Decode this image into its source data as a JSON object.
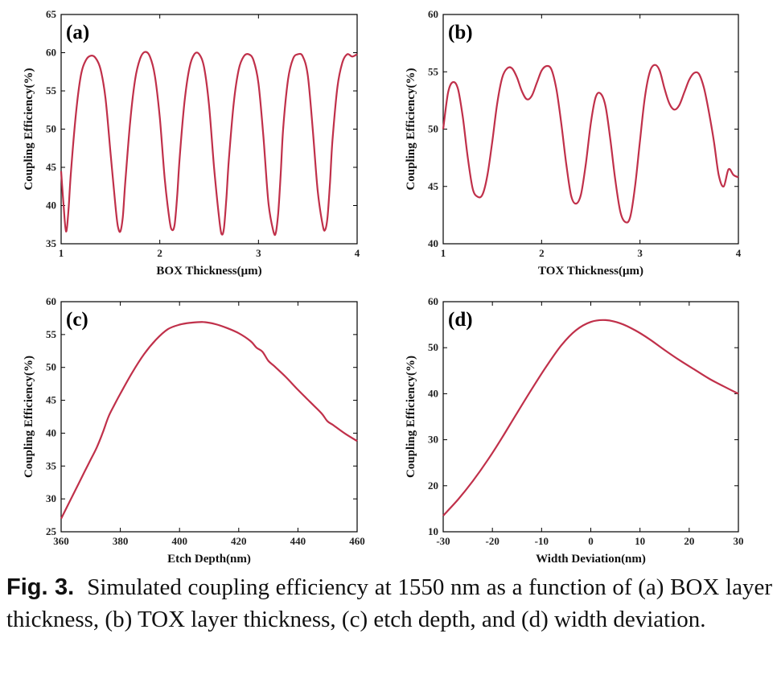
{
  "colors": {
    "line": "#c0304a",
    "axis": "#000000"
  },
  "caption": {
    "label": "Fig. 3.",
    "text": "Simulated coupling efficiency at 1550 nm as a function of (a) BOX layer thickness, (b) TOX layer thickness, (c) etch depth, and (d) width deviation."
  },
  "chart_data": [
    {
      "type": "line",
      "panel": "(a)",
      "xlabel": "BOX Thickness(μm)",
      "ylabel": "Coupling Efficiency(%)",
      "xlim": [
        1,
        4
      ],
      "ylim": [
        35,
        65
      ],
      "xticks": [
        1,
        2,
        3,
        4
      ],
      "yticks": [
        35,
        40,
        45,
        50,
        55,
        60,
        65
      ],
      "x": [
        1.0,
        1.025,
        1.05,
        1.075,
        1.1,
        1.15,
        1.2,
        1.25,
        1.3,
        1.35,
        1.4,
        1.45,
        1.5,
        1.55,
        1.575,
        1.6,
        1.625,
        1.65,
        1.7,
        1.75,
        1.8,
        1.85,
        1.9,
        1.95,
        2.0,
        2.05,
        2.1,
        2.125,
        2.15,
        2.175,
        2.2,
        2.25,
        2.3,
        2.35,
        2.4,
        2.45,
        2.5,
        2.55,
        2.6,
        2.625,
        2.65,
        2.675,
        2.7,
        2.75,
        2.8,
        2.85,
        2.9,
        2.95,
        3.0,
        3.05,
        3.1,
        3.15,
        3.175,
        3.2,
        3.225,
        3.25,
        3.3,
        3.35,
        3.4,
        3.45,
        3.5,
        3.55,
        3.6,
        3.65,
        3.675,
        3.7,
        3.725,
        3.75,
        3.8,
        3.85,
        3.9,
        3.95,
        4.0
      ],
      "y": [
        44.5,
        40.0,
        36.6,
        39.5,
        44.5,
        52.0,
        57.0,
        59.0,
        59.6,
        59.3,
        57.8,
        54.0,
        47.0,
        40.0,
        37.3,
        36.6,
        38.5,
        43.0,
        51.0,
        56.5,
        59.2,
        60.1,
        59.5,
        57.0,
        51.5,
        43.5,
        38.0,
        36.8,
        37.5,
        41.0,
        46.0,
        53.5,
        58.0,
        59.8,
        59.8,
        58.0,
        53.0,
        45.0,
        38.5,
        36.3,
        37.0,
        41.0,
        46.0,
        53.5,
        57.8,
        59.5,
        59.8,
        59.0,
        56.0,
        49.0,
        40.5,
        36.7,
        36.4,
        39.0,
        44.0,
        50.0,
        56.5,
        59.2,
        59.8,
        59.5,
        57.0,
        50.0,
        42.0,
        37.5,
        36.8,
        38.5,
        43.0,
        48.5,
        55.5,
        58.7,
        59.8,
        59.5,
        59.8
      ]
    },
    {
      "type": "line",
      "panel": "(b)",
      "xlabel": "TOX Thickness(μm)",
      "ylabel": "Coupling Efficiency(%)",
      "xlim": [
        1,
        4
      ],
      "ylim": [
        40,
        60
      ],
      "xticks": [
        1,
        2,
        3,
        4
      ],
      "yticks": [
        40,
        45,
        50,
        55,
        60
      ],
      "x": [
        1.0,
        1.05,
        1.1,
        1.15,
        1.2,
        1.25,
        1.3,
        1.35,
        1.4,
        1.45,
        1.5,
        1.55,
        1.6,
        1.65,
        1.7,
        1.75,
        1.8,
        1.85,
        1.9,
        1.95,
        2.0,
        2.05,
        2.1,
        2.15,
        2.2,
        2.25,
        2.3,
        2.35,
        2.4,
        2.45,
        2.5,
        2.55,
        2.6,
        2.65,
        2.7,
        2.75,
        2.8,
        2.85,
        2.9,
        2.95,
        3.0,
        3.05,
        3.1,
        3.15,
        3.2,
        3.25,
        3.3,
        3.35,
        3.4,
        3.45,
        3.5,
        3.55,
        3.6,
        3.65,
        3.7,
        3.75,
        3.8,
        3.85,
        3.9,
        3.95,
        4.0
      ],
      "y": [
        50.0,
        53.2,
        54.1,
        53.5,
        51.0,
        47.5,
        44.8,
        44.1,
        44.3,
        46.0,
        49.0,
        52.3,
        54.5,
        55.3,
        55.3,
        54.5,
        53.3,
        52.6,
        52.9,
        54.0,
        55.1,
        55.5,
        55.2,
        53.5,
        50.5,
        47.0,
        44.2,
        43.5,
        44.3,
        47.0,
        50.5,
        52.8,
        53.1,
        52.0,
        49.0,
        45.5,
        42.8,
        41.9,
        42.3,
        45.0,
        49.0,
        52.8,
        55.0,
        55.6,
        55.1,
        53.5,
        52.2,
        51.7,
        52.1,
        53.2,
        54.3,
        54.9,
        54.8,
        53.6,
        51.5,
        49.0,
        46.0,
        45.0,
        46.5,
        46.0,
        45.8
      ]
    },
    {
      "type": "line",
      "panel": "(c)",
      "xlabel": "Etch Depth(nm)",
      "ylabel": "Coupling Efficiency(%)",
      "xlim": [
        360,
        460
      ],
      "ylim": [
        25,
        60
      ],
      "xticks": [
        360,
        380,
        400,
        420,
        440,
        460
      ],
      "yticks": [
        25,
        30,
        35,
        40,
        45,
        50,
        55,
        60
      ],
      "x": [
        360,
        362,
        364,
        366,
        368,
        370,
        372,
        374,
        376,
        378,
        380,
        384,
        388,
        392,
        396,
        400,
        404,
        408,
        412,
        416,
        420,
        424,
        426,
        428,
        430,
        432,
        436,
        440,
        444,
        448,
        450,
        452,
        456,
        460
      ],
      "y": [
        27.0,
        28.8,
        30.6,
        32.4,
        34.2,
        36.0,
        37.8,
        40.0,
        42.5,
        44.3,
        46.0,
        49.2,
        52.0,
        54.2,
        55.8,
        56.5,
        56.8,
        56.9,
        56.6,
        56.0,
        55.2,
        54.0,
        53.0,
        52.4,
        51.0,
        50.2,
        48.5,
        46.6,
        44.8,
        43.0,
        41.8,
        41.2,
        39.9,
        38.8
      ]
    },
    {
      "type": "line",
      "panel": "(d)",
      "xlabel": "Width Deviation(nm)",
      "ylabel": "Coupling Efficiency(%)",
      "xlim": [
        -30,
        30
      ],
      "ylim": [
        10,
        60
      ],
      "xticks": [
        -30,
        -20,
        -10,
        0,
        10,
        20,
        30
      ],
      "yticks": [
        10,
        20,
        30,
        40,
        50,
        60
      ],
      "x": [
        -30,
        -27,
        -24,
        -21,
        -18,
        -15,
        -12,
        -9,
        -6,
        -3,
        0,
        3,
        6,
        9,
        12,
        15,
        18,
        21,
        24,
        27,
        30
      ],
      "y": [
        13.5,
        17.0,
        21.0,
        25.5,
        30.5,
        35.8,
        41.0,
        46.0,
        50.5,
        53.8,
        55.6,
        56.0,
        55.3,
        53.8,
        51.8,
        49.5,
        47.3,
        45.3,
        43.3,
        41.6,
        40.0
      ]
    }
  ]
}
